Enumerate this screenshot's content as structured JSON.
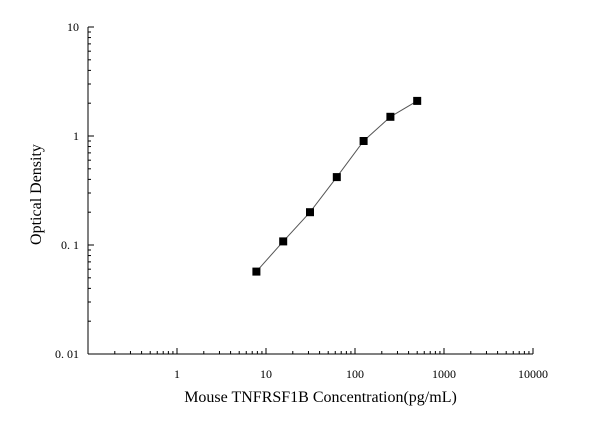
{
  "chart_data": {
    "type": "scatter",
    "xscale": "log",
    "yscale": "log",
    "xlim": [
      0.1,
      10000
    ],
    "ylim": [
      0.01,
      10
    ],
    "xlabel": "Mouse TNFRSF1B Concentration(pg/mL)",
    "ylabel": "Optical Density",
    "xticks": [
      {
        "value": 1,
        "label": "1"
      },
      {
        "value": 10,
        "label": "10"
      },
      {
        "value": 100,
        "label": "100"
      },
      {
        "value": 1000,
        "label": "1000"
      },
      {
        "value": 10000,
        "label": "10000"
      }
    ],
    "yticks": [
      {
        "value": 0.01,
        "label": "0. 01"
      },
      {
        "value": 0.1,
        "label": "0. 1"
      },
      {
        "value": 1,
        "label": "1"
      },
      {
        "value": 10,
        "label": "10"
      }
    ],
    "grid": false,
    "legend": "none",
    "marker": "square",
    "line_connected": true,
    "series": [
      {
        "x": [
          7.8,
          15.6,
          31.25,
          62.5,
          125,
          250,
          500
        ],
        "y": [
          0.057,
          0.108,
          0.2,
          0.42,
          0.9,
          1.5,
          2.1
        ]
      }
    ],
    "colors": {
      "marker": "#000000",
      "line": "#555555",
      "axis": "#000000"
    }
  }
}
